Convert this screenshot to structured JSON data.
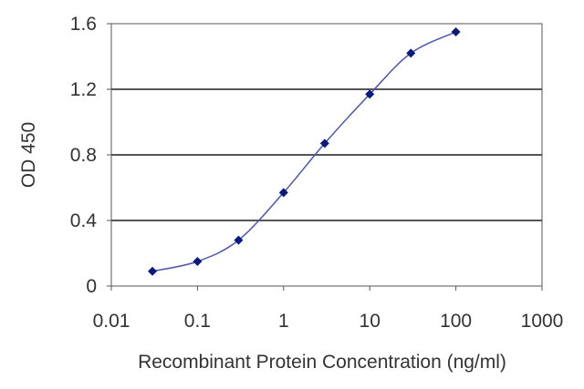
{
  "chart_data": {
    "type": "line",
    "title": "",
    "xlabel": "Recombinant Protein Concentration (ng/ml)",
    "ylabel": "OD 450",
    "x_scale": "log",
    "xlim": [
      0.01,
      1000
    ],
    "ylim": [
      0,
      1.6
    ],
    "x_ticks": [
      0.01,
      0.1,
      1,
      10,
      100,
      1000
    ],
    "x_tick_labels": [
      "0.01",
      "0.1",
      "1",
      "10",
      "100",
      "1000"
    ],
    "y_ticks": [
      0,
      0.4,
      0.8,
      1.2,
      1.6
    ],
    "y_tick_labels": [
      "0",
      "0.4",
      "0.8",
      "1.2",
      "1.6"
    ],
    "grid": "horizontal",
    "legend": "none",
    "series": [
      {
        "x": [
          0.03,
          0.1,
          0.3,
          1,
          3,
          10,
          30,
          100
        ],
        "y": [
          0.09,
          0.15,
          0.28,
          0.57,
          0.87,
          1.17,
          1.42,
          1.55
        ]
      }
    ],
    "colors": {
      "line": "#4a55b0",
      "marker": "#0b1a7e",
      "grid": "#555555",
      "frame": "#555555"
    }
  }
}
